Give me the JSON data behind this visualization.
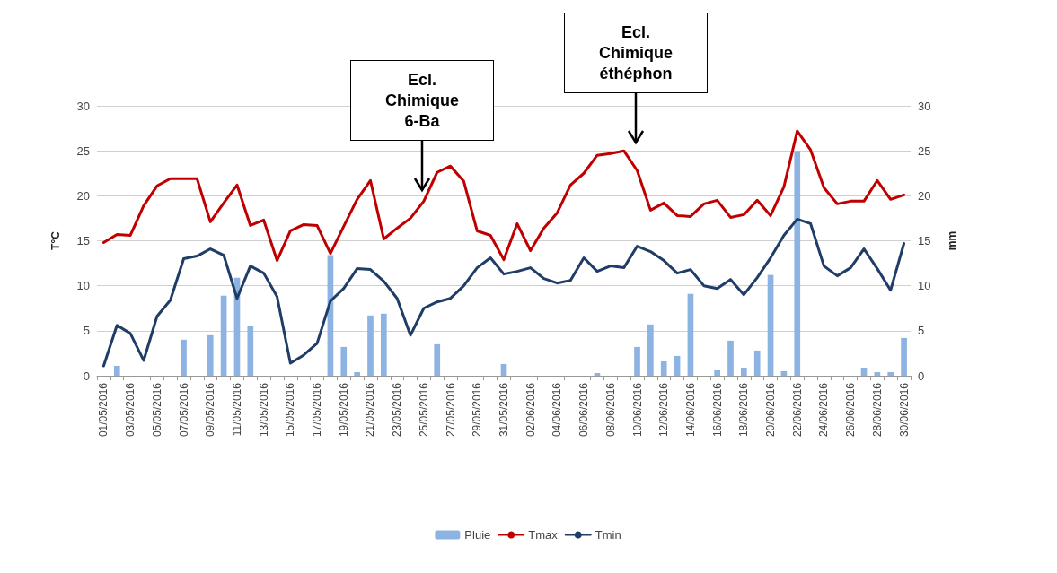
{
  "chart_data": {
    "type": "line",
    "ylabel": "T°C",
    "y2label": "mm",
    "categories": [
      "01/05/2016",
      null,
      "03/05/2016",
      null,
      "05/05/2016",
      null,
      "07/05/2016",
      null,
      "09/05/2016",
      null,
      "11/05/2016",
      null,
      "13/05/2016",
      null,
      "15/05/2016",
      null,
      "17/05/2016",
      null,
      "19/05/2016",
      null,
      "21/05/2016",
      null,
      "23/05/2016",
      null,
      "25/05/2016",
      null,
      "27/05/2016",
      null,
      "29/05/2016",
      null,
      "31/05/2016",
      null,
      "02/06/2016",
      null,
      "04/06/2016",
      null,
      "06/06/2016",
      null,
      "08/06/2016",
      null,
      "10/06/2016",
      null,
      "12/06/2016",
      null,
      "14/06/2016",
      null,
      "16/06/2016",
      null,
      "18/06/2016",
      null,
      "20/06/2016",
      null,
      "22/06/2016",
      null,
      "24/06/2016",
      null,
      "26/06/2016",
      null,
      "28/06/2016",
      null,
      "30/06/2016"
    ],
    "series": [
      {
        "name": "Pluie",
        "type": "bar",
        "axis": "y2",
        "color": "#8db3e2",
        "values": [
          0,
          1.1,
          0,
          0,
          0,
          0,
          4.0,
          0,
          4.5,
          8.9,
          10.9,
          5.5,
          0,
          0,
          0,
          0,
          0,
          13.4,
          3.2,
          0.4,
          6.7,
          6.9,
          0,
          0,
          0,
          3.5,
          0,
          0,
          0,
          0,
          1.3,
          0,
          0,
          0,
          0,
          0,
          0,
          0.3,
          0,
          0,
          3.2,
          5.7,
          1.6,
          2.2,
          9.1,
          0,
          0.6,
          3.9,
          0.9,
          2.8,
          11.2,
          0.5,
          25.0,
          0,
          0,
          0,
          0,
          0.9,
          0.4,
          0.4,
          4.2
        ]
      },
      {
        "name": "Tmax",
        "color": "#c00000",
        "values": [
          14.8,
          15.7,
          15.6,
          18.9,
          21.1,
          21.9,
          21.9,
          21.9,
          17.1,
          19.2,
          21.2,
          16.7,
          17.3,
          12.8,
          16.1,
          16.8,
          16.7,
          13.6,
          16.6,
          19.6,
          21.7,
          15.2,
          16.4,
          17.5,
          19.4,
          22.6,
          23.3,
          21.6,
          16.1,
          15.6,
          12.9,
          16.9,
          13.9,
          16.4,
          18.1,
          21.2,
          22.5,
          24.5,
          24.7,
          25.0,
          22.8,
          18.4,
          19.2,
          17.8,
          17.7,
          19.1,
          19.5,
          17.6,
          17.9,
          19.5,
          17.8,
          21.0,
          27.2,
          25.1,
          20.9,
          19.1,
          19.4,
          19.4,
          21.7,
          19.6,
          20.1
        ]
      },
      {
        "name": "Tmin",
        "color": "#1f3d66",
        "values": [
          1.1,
          5.6,
          4.7,
          1.7,
          6.6,
          8.4,
          13.0,
          13.3,
          14.1,
          13.4,
          8.6,
          12.2,
          11.4,
          8.8,
          1.4,
          2.3,
          3.6,
          8.3,
          9.7,
          11.9,
          11.8,
          10.5,
          8.6,
          4.5,
          7.5,
          8.2,
          8.6,
          10.0,
          12.0,
          13.1,
          11.3,
          11.6,
          12.0,
          10.8,
          10.3,
          10.6,
          13.1,
          11.6,
          12.2,
          12.0,
          14.4,
          13.8,
          12.8,
          11.4,
          11.8,
          10.0,
          9.7,
          10.7,
          9.0,
          10.9,
          13.1,
          15.6,
          17.4,
          16.9,
          12.2,
          11.1,
          12.0,
          14.1,
          11.9,
          9.5,
          14.7
        ]
      }
    ],
    "ylim": [
      0,
      30
    ],
    "yticks": [
      0,
      5,
      10,
      15,
      20,
      25,
      30
    ],
    "y2lim": [
      0,
      30
    ],
    "y2ticks": [
      0,
      5,
      10,
      15,
      20,
      25,
      30
    ],
    "grid": "y",
    "legend": "bottom",
    "marker": "none",
    "line_style": "solid",
    "annotations": [
      "Ecl.\nChimique\n6-Ba",
      "Ecl.\nChimique\néthéphon"
    ]
  }
}
